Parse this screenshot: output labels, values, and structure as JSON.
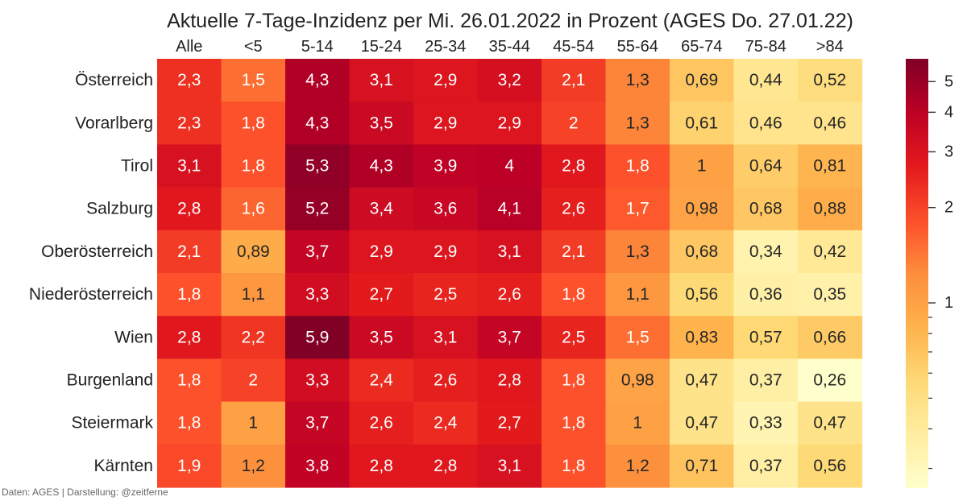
{
  "chart_data": {
    "type": "heatmap",
    "title": "Aktuelle 7-Tage-Inzidenz per Mi. 26.01.2022 in Prozent  (AGES Do. 27.01.22)",
    "columns": [
      "Alle",
      "<5",
      "5-14",
      "15-24",
      "25-34",
      "35-44",
      "45-54",
      "55-64",
      "65-74",
      "75-84",
      ">84"
    ],
    "rows": [
      "Österreich",
      "Vorarlberg",
      "Tirol",
      "Salzburg",
      "Oberösterreich",
      "Niederösterreich",
      "Wien",
      "Burgenland",
      "Steiermark",
      "Kärnten"
    ],
    "values": [
      [
        2.3,
        1.5,
        4.3,
        3.1,
        2.9,
        3.2,
        2.1,
        1.3,
        0.69,
        0.44,
        0.52
      ],
      [
        2.3,
        1.8,
        4.3,
        3.5,
        2.9,
        2.9,
        2.0,
        1.3,
        0.61,
        0.46,
        0.46
      ],
      [
        3.1,
        1.8,
        5.3,
        4.3,
        3.9,
        4.0,
        2.8,
        1.8,
        1.0,
        0.64,
        0.81
      ],
      [
        2.8,
        1.6,
        5.2,
        3.4,
        3.6,
        4.1,
        2.6,
        1.7,
        0.98,
        0.68,
        0.88
      ],
      [
        2.1,
        0.89,
        3.7,
        2.9,
        2.9,
        3.1,
        2.1,
        1.3,
        0.68,
        0.34,
        0.42
      ],
      [
        1.8,
        1.1,
        3.3,
        2.7,
        2.5,
        2.6,
        1.8,
        1.1,
        0.56,
        0.36,
        0.35
      ],
      [
        2.8,
        2.2,
        5.9,
        3.5,
        3.1,
        3.7,
        2.5,
        1.5,
        0.83,
        0.57,
        0.66
      ],
      [
        1.8,
        2.0,
        3.3,
        2.4,
        2.6,
        2.8,
        1.8,
        0.98,
        0.47,
        0.37,
        0.26
      ],
      [
        1.8,
        1.0,
        3.7,
        2.6,
        2.4,
        2.7,
        1.8,
        1.0,
        0.47,
        0.33,
        0.47
      ],
      [
        1.9,
        1.2,
        3.8,
        2.8,
        2.8,
        3.1,
        1.8,
        1.2,
        0.71,
        0.37,
        0.56
      ]
    ],
    "value_labels": [
      [
        "2,3",
        "1,5",
        "4,3",
        "3,1",
        "2,9",
        "3,2",
        "2,1",
        "1,3",
        "0,69",
        "0,44",
        "0,52"
      ],
      [
        "2,3",
        "1,8",
        "4,3",
        "3,5",
        "2,9",
        "2,9",
        "2",
        "1,3",
        "0,61",
        "0,46",
        "0,46"
      ],
      [
        "3,1",
        "1,8",
        "5,3",
        "4,3",
        "3,9",
        "4",
        "2,8",
        "1,8",
        "1",
        "0,64",
        "0,81"
      ],
      [
        "2,8",
        "1,6",
        "5,2",
        "3,4",
        "3,6",
        "4,1",
        "2,6",
        "1,7",
        "0,98",
        "0,68",
        "0,88"
      ],
      [
        "2,1",
        "0,89",
        "3,7",
        "2,9",
        "2,9",
        "3,1",
        "2,1",
        "1,3",
        "0,68",
        "0,34",
        "0,42"
      ],
      [
        "1,8",
        "1,1",
        "3,3",
        "2,7",
        "2,5",
        "2,6",
        "1,8",
        "1,1",
        "0,56",
        "0,36",
        "0,35"
      ],
      [
        "2,8",
        "2,2",
        "5,9",
        "3,5",
        "3,1",
        "3,7",
        "2,5",
        "1,5",
        "0,83",
        "0,57",
        "0,66"
      ],
      [
        "1,8",
        "2",
        "3,3",
        "2,4",
        "2,6",
        "2,8",
        "1,8",
        "0,98",
        "0,47",
        "0,37",
        "0,26"
      ],
      [
        "1,8",
        "1",
        "3,7",
        "2,6",
        "2,4",
        "2,7",
        "1,8",
        "1",
        "0,47",
        "0,33",
        "0,47"
      ],
      [
        "1,9",
        "1,2",
        "3,8",
        "2,8",
        "2,8",
        "3,1",
        "1,8",
        "1,2",
        "0,71",
        "0,37",
        "0,56"
      ]
    ],
    "colormap": "YlOrRd",
    "color_scale": "log",
    "color_range": [
      0.26,
      5.9
    ],
    "colorbar_ticks": [
      1,
      2,
      3,
      4,
      5
    ],
    "colorbar_ticks_minor": [
      0.3,
      0.4,
      0.5,
      0.6,
      0.7,
      0.8,
      0.9
    ],
    "x_axis_position": "top",
    "grid": false
  },
  "footnote": "Daten: AGES | Darstellung: @zeitferne"
}
